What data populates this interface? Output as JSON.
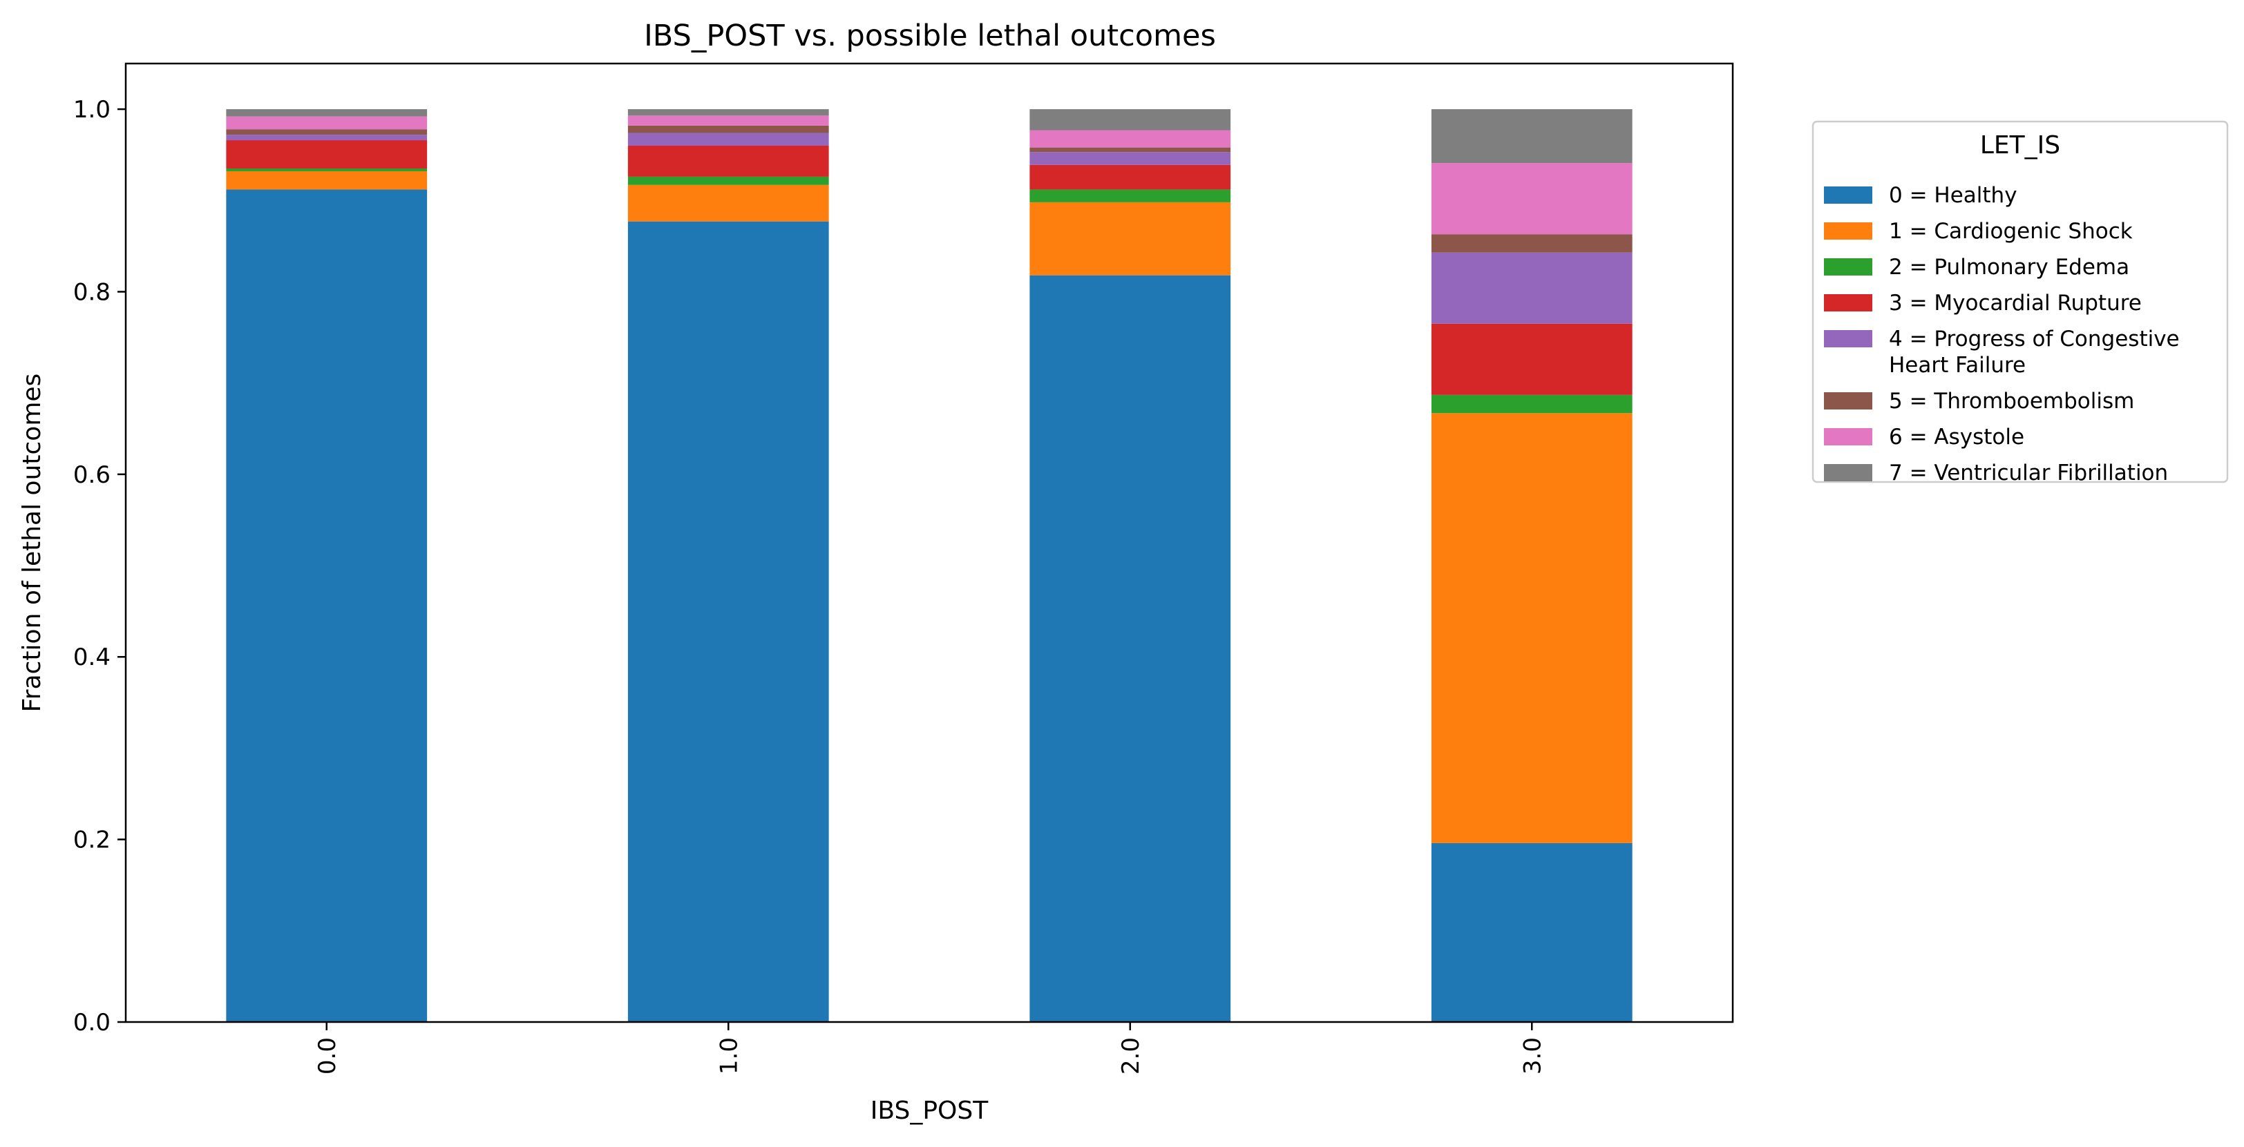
{
  "chart_data": {
    "type": "bar",
    "stacked": true,
    "title": "IBS_POST vs. possible lethal outcomes",
    "xlabel": "IBS_POST",
    "ylabel": "Fraction of lethal outcomes",
    "categories": [
      "0.0",
      "1.0",
      "2.0",
      "3.0"
    ],
    "ylim": [
      0,
      1.05
    ],
    "yticks": [
      "0.0",
      "0.2",
      "0.4",
      "0.6",
      "0.8",
      "1.0"
    ],
    "grid": false,
    "legend": {
      "title": "LET_IS",
      "placement": "outside-right",
      "entries": [
        [
          "0 = Healthy"
        ],
        [
          "1 = Cardiogenic Shock"
        ],
        [
          "2 = Pulmonary Edema"
        ],
        [
          "3 = Myocardial Rupture"
        ],
        [
          "4 = Progress of Congestive",
          "Heart Failure"
        ],
        [
          "5 = Thromboembolism"
        ],
        [
          "6 = Asystole"
        ],
        [
          "7 = Ventricular Fibrillation"
        ]
      ]
    },
    "series": [
      {
        "name": "0 = Healthy",
        "color": "#1f77b4",
        "values": [
          0.912,
          0.877,
          0.818,
          0.196
        ]
      },
      {
        "name": "1 = Cardiogenic Shock",
        "color": "#ff7f0e",
        "values": [
          0.02,
          0.04,
          0.08,
          0.471
        ]
      },
      {
        "name": "2 = Pulmonary Edema",
        "color": "#2ca02c",
        "values": [
          0.003,
          0.009,
          0.014,
          0.02
        ]
      },
      {
        "name": "3 = Myocardial Rupture",
        "color": "#d62728",
        "values": [
          0.031,
          0.034,
          0.027,
          0.078
        ]
      },
      {
        "name": "4 = Progress of Congestive Heart Failure",
        "color": "#9467bd",
        "values": [
          0.006,
          0.014,
          0.014,
          0.078
        ]
      },
      {
        "name": "5 = Thromboembolism",
        "color": "#8c564b",
        "values": [
          0.006,
          0.008,
          0.005,
          0.02
        ]
      },
      {
        "name": "6 = Asystole",
        "color": "#e377c2",
        "values": [
          0.014,
          0.011,
          0.019,
          0.078
        ]
      },
      {
        "name": "7 = Ventricular Fibrillation",
        "color": "#7f7f7f",
        "values": [
          0.008,
          0.007,
          0.023,
          0.059
        ]
      }
    ]
  }
}
